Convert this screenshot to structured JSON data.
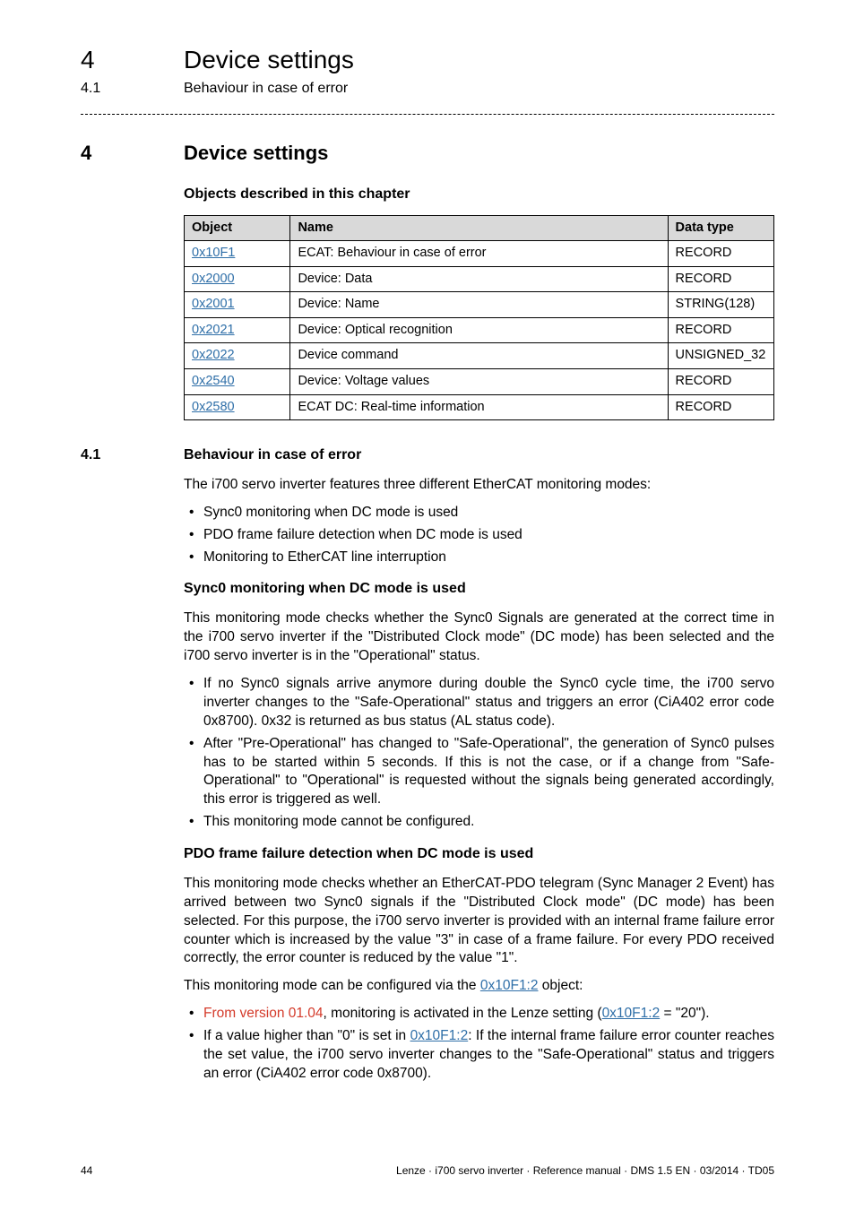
{
  "running": {
    "chapNo": "4",
    "chapTitle": "Device settings",
    "secNo": "4.1",
    "secTitle": "Behaviour in case of error"
  },
  "h1": {
    "num": "4",
    "txt": "Device settings"
  },
  "objectsHeading": "Objects described in this chapter",
  "table": {
    "headers": {
      "object": "Object",
      "name": "Name",
      "type": "Data type"
    },
    "header_bg": "#d9d9d9",
    "link_color": "#2f6fa8",
    "rows": [
      {
        "object": "0x10F1",
        "name": "ECAT: Behaviour in case of error",
        "type": "RECORD"
      },
      {
        "object": "0x2000",
        "name": "Device: Data",
        "type": "RECORD"
      },
      {
        "object": "0x2001",
        "name": "Device: Name",
        "type": "STRING(128)"
      },
      {
        "object": "0x2021",
        "name": "Device: Optical recognition",
        "type": "RECORD"
      },
      {
        "object": "0x2022",
        "name": "Device command",
        "type": "UNSIGNED_32"
      },
      {
        "object": "0x2540",
        "name": "Device: Voltage values",
        "type": "RECORD"
      },
      {
        "object": "0x2580",
        "name": "ECAT DC: Real-time information",
        "type": "RECORD"
      }
    ]
  },
  "h2": {
    "num": "4.1",
    "txt": "Behaviour in case of error"
  },
  "intro": "The i700 servo inverter features three different EtherCAT monitoring modes:",
  "modes": [
    "Sync0 monitoring when DC mode is used",
    "PDO frame failure detection when DC mode is used",
    "Monitoring to EtherCAT line interruption"
  ],
  "sync0": {
    "heading": "Sync0 monitoring when DC mode is used",
    "para": "This monitoring mode checks whether the Sync0 Signals are generated at the correct time in the i700 servo inverter if the \"Distributed Clock mode\" (DC mode) has been selected and the i700 servo inverter is in the \"Operational\" status.",
    "bullets": [
      "If no Sync0 signals arrive anymore during double the Sync0 cycle time, the i700 servo inverter changes to the \"Safe-Operational\" status and triggers an error (CiA402 error code 0x8700). 0x32 is returned as bus status (AL status code).",
      "After \"Pre-Operational\" has changed to \"Safe-Operational\", the generation of Sync0 pulses has to be started within 5 seconds. If this is not the case, or if a change from \"Safe-Operational\" to \"Operational\" is requested without the signals being generated accordingly, this error is triggered as well.",
      "This monitoring mode cannot be configured."
    ]
  },
  "pdo": {
    "heading": "PDO frame failure detection when DC mode is used",
    "para1": "This monitoring mode checks whether an EtherCAT-PDO telegram (Sync Manager 2 Event) has arrived between two Sync0 signals if the \"Distributed Clock mode\" (DC mode) has been selected. For this purpose, the i700 servo inverter is provided with an internal frame failure error counter which is increased by the value \"3\" in case of a frame failure. For every PDO received correctly, the error counter is reduced by the value \"1\".",
    "para2_pre": "This monitoring mode can be configured via the ",
    "para2_link": "0x10F1:2",
    "para2_post": " object:",
    "b1_pre": "From version 01.04",
    "b1_mid": ", monitoring is activated in the Lenze setting (",
    "b1_link": "0x10F1:2",
    "b1_post": " = \"20\").",
    "b2_pre": "If a value higher than \"0\" is set in ",
    "b2_link": "0x10F1:2",
    "b2_post": ": If the internal frame failure error counter reaches the set value, the i700 servo inverter changes to the \"Safe-Operational\" status and triggers an error (CiA402 error code 0x8700)."
  },
  "colors": {
    "link": "#2f6fa8",
    "version": "#d43a2a"
  },
  "footer": {
    "page": "44",
    "imprint": "Lenze · i700 servo inverter · Reference manual · DMS 1.5 EN · 03/2014 · TD05"
  }
}
